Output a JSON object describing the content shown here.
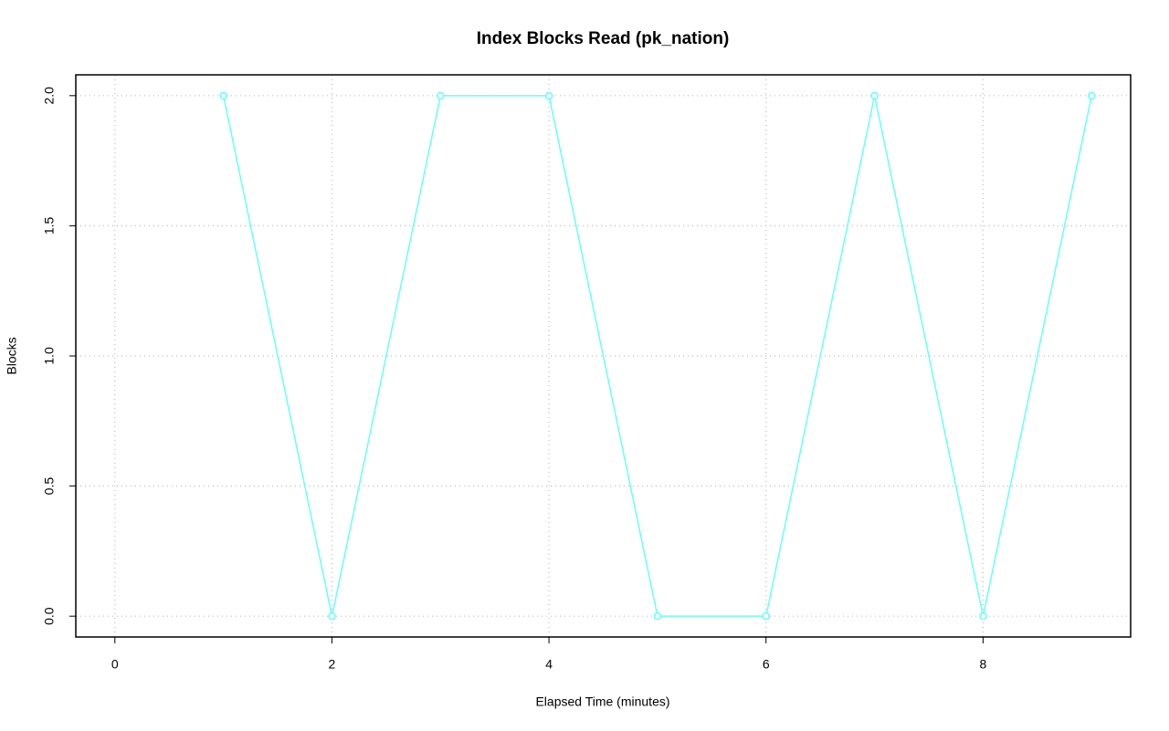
{
  "chart_data": {
    "type": "line",
    "title": "Index Blocks Read (pk_nation)",
    "x_label": "Elapsed Time (minutes)",
    "y_label": "Blocks",
    "x": [
      1,
      2,
      3,
      4,
      5,
      6,
      7,
      8,
      9
    ],
    "series": [
      {
        "name": "pk_nation",
        "color": "#66ffff",
        "values": [
          2,
          0,
          2,
          2,
          0,
          0,
          2,
          0,
          2
        ]
      }
    ],
    "xlim": [
      -0.36,
      9.36
    ],
    "xticks": [
      0,
      2,
      4,
      6,
      8
    ],
    "ylim": [
      -0.08,
      2.08
    ],
    "yticks": [
      {
        "value": 0,
        "label": "0.0"
      },
      {
        "value": 0.5,
        "label": "0.5"
      },
      {
        "value": 1,
        "label": "1.0"
      },
      {
        "value": 1.5,
        "label": "1.5"
      },
      {
        "value": 2,
        "label": "2.0"
      }
    ],
    "grid": true
  }
}
